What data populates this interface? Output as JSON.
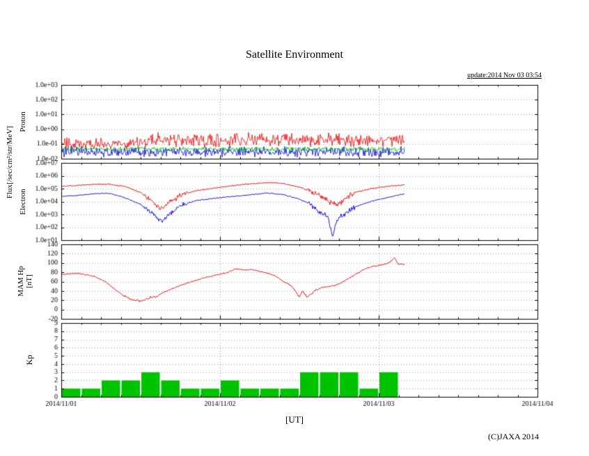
{
  "header": {
    "title": "Satellite Environment",
    "update": "update:2014 Nov 03 03:54"
  },
  "footer": {
    "ut_label": "[UT]",
    "copyright": "(C)JAXA 2014"
  },
  "axis_labels": {
    "flux": "Flux[/sec/cm²/str/MeV]",
    "proton": "Proton",
    "electron": "Electron",
    "mam_line1": "MAM Hp",
    "mam_line2": "[nT]",
    "kp": "Kp"
  },
  "colors": {
    "red": "#ee0000",
    "green": "#00c300",
    "blue": "#0000dd",
    "grid": "#a0a0a0",
    "frame": "#000000",
    "text": "#000000"
  },
  "x_axis": {
    "range_days": 3,
    "tick_labels": [
      "2014/11/01",
      "2014/11/02",
      "2014/11/03",
      "2014/11/04"
    ]
  },
  "chart_data": [
    {
      "name": "proton_flux",
      "type": "noise-band-line",
      "yscale": "log",
      "ylim": [
        0.01,
        1000
      ],
      "ytick_labels": [
        "1.0e+03",
        "1.0e+02",
        "1.0e+01",
        "1.0e+00",
        "1.0e-01",
        "1.0e-02"
      ],
      "t_end": 2.163,
      "series": [
        {
          "name": "proton-ch1",
          "color_key": "red",
          "segments": [
            {
              "t0": 0.0,
              "t1": 0.55,
              "mean_log10": -0.95,
              "spread_log10": 0.45
            },
            {
              "t0": 0.55,
              "t1": 2.163,
              "mean_log10": -0.72,
              "spread_log10": 0.55
            }
          ]
        },
        {
          "name": "proton-ch2",
          "color_key": "blue",
          "segments": [
            {
              "t0": 0.0,
              "t1": 2.163,
              "mean_log10": -1.55,
              "spread_log10": 0.42
            }
          ]
        },
        {
          "name": "proton-ch3",
          "color_key": "green",
          "segments": [
            {
              "t0": 0.0,
              "t1": 2.163,
              "mean_log10": -1.35,
              "spread_log10": 0.18
            }
          ]
        }
      ]
    },
    {
      "name": "electron_flux",
      "type": "line",
      "yscale": "log",
      "ylim": [
        10,
        10000000
      ],
      "ytick_labels": [
        "1.0e+07",
        "1.0e+06",
        "1.0e+05",
        "1.0e+04",
        "1.0e+03",
        "1.0e+02",
        "1.0e+01"
      ],
      "noise": {
        "base": 0.05,
        "zones": [
          [
            0.52,
            0.8,
            0.22
          ],
          [
            1.55,
            1.85,
            0.25
          ]
        ]
      },
      "series": [
        {
          "name": "electron-high",
          "color_key": "red",
          "points": [
            [
              0.0,
              150000
            ],
            [
              0.1,
              180000
            ],
            [
              0.2,
              220000
            ],
            [
              0.3,
              230000
            ],
            [
              0.4,
              150000
            ],
            [
              0.5,
              50000
            ],
            [
              0.58,
              8000
            ],
            [
              0.63,
              3000
            ],
            [
              0.68,
              8000
            ],
            [
              0.75,
              30000
            ],
            [
              0.85,
              70000
            ],
            [
              1.0,
              130000
            ],
            [
              1.15,
              220000
            ],
            [
              1.3,
              300000
            ],
            [
              1.4,
              250000
            ],
            [
              1.5,
              130000
            ],
            [
              1.55,
              80000
            ],
            [
              1.6,
              40000
            ],
            [
              1.65,
              20000
            ],
            [
              1.7,
              8000
            ],
            [
              1.75,
              6000
            ],
            [
              1.8,
              20000
            ],
            [
              1.85,
              50000
            ],
            [
              1.95,
              100000
            ],
            [
              2.05,
              150000
            ],
            [
              2.163,
              200000
            ]
          ]
        },
        {
          "name": "electron-low",
          "color_key": "blue",
          "points": [
            [
              0.0,
              25000
            ],
            [
              0.1,
              30000
            ],
            [
              0.2,
              40000
            ],
            [
              0.3,
              45000
            ],
            [
              0.4,
              20000
            ],
            [
              0.5,
              6000
            ],
            [
              0.58,
              1000
            ],
            [
              0.63,
              300
            ],
            [
              0.68,
              1000
            ],
            [
              0.75,
              5000
            ],
            [
              0.85,
              12000
            ],
            [
              1.0,
              20000
            ],
            [
              1.15,
              30000
            ],
            [
              1.3,
              45000
            ],
            [
              1.4,
              35000
            ],
            [
              1.5,
              15000
            ],
            [
              1.55,
              8000
            ],
            [
              1.6,
              3000
            ],
            [
              1.65,
              1000
            ],
            [
              1.68,
              800
            ],
            [
              1.7,
              40
            ],
            [
              1.71,
              12
            ],
            [
              1.72,
              60
            ],
            [
              1.74,
              400
            ],
            [
              1.78,
              1000
            ],
            [
              1.85,
              4000
            ],
            [
              1.95,
              10000
            ],
            [
              2.05,
              20000
            ],
            [
              2.163,
              40000
            ]
          ]
        }
      ]
    },
    {
      "name": "mam_hp",
      "type": "line",
      "yscale": "linear",
      "ylim": [
        -20,
        140
      ],
      "ytick_labels": [
        "140",
        "120",
        "100",
        "80",
        "60",
        "40",
        "20",
        "0",
        "-20"
      ],
      "noise": {
        "base": 1.3,
        "zones": [
          [
            0.38,
            0.62,
            3.0
          ],
          [
            1.42,
            1.62,
            3.0
          ]
        ]
      },
      "series": [
        {
          "name": "hp",
          "color_key": "red",
          "points": [
            [
              0.0,
              75
            ],
            [
              0.1,
              78
            ],
            [
              0.2,
              72
            ],
            [
              0.28,
              60
            ],
            [
              0.33,
              45
            ],
            [
              0.4,
              28
            ],
            [
              0.45,
              22
            ],
            [
              0.5,
              18
            ],
            [
              0.55,
              25
            ],
            [
              0.6,
              28
            ],
            [
              0.65,
              38
            ],
            [
              0.72,
              48
            ],
            [
              0.8,
              58
            ],
            [
              0.9,
              68
            ],
            [
              1.0,
              76
            ],
            [
              1.05,
              80
            ],
            [
              1.1,
              88
            ],
            [
              1.15,
              85
            ],
            [
              1.2,
              86
            ],
            [
              1.3,
              78
            ],
            [
              1.35,
              72
            ],
            [
              1.4,
              60
            ],
            [
              1.45,
              50
            ],
            [
              1.5,
              28
            ],
            [
              1.52,
              40
            ],
            [
              1.55,
              25
            ],
            [
              1.6,
              42
            ],
            [
              1.65,
              48
            ],
            [
              1.7,
              50
            ],
            [
              1.75,
              55
            ],
            [
              1.8,
              65
            ],
            [
              1.85,
              75
            ],
            [
              1.9,
              85
            ],
            [
              1.95,
              92
            ],
            [
              2.0,
              95
            ],
            [
              2.05,
              98
            ],
            [
              2.08,
              105
            ],
            [
              2.1,
              112
            ],
            [
              2.12,
              98
            ],
            [
              2.163,
              97
            ]
          ]
        }
      ]
    },
    {
      "name": "kp_index",
      "type": "bar",
      "yscale": "linear",
      "ylim": [
        0,
        9
      ],
      "ytick_labels": [
        "9",
        "8",
        "7",
        "6",
        "5",
        "4",
        "3",
        "2",
        "1",
        "0"
      ],
      "bar_hours": 3,
      "color_key": "green",
      "values": [
        1,
        1,
        2,
        2,
        3,
        2,
        1,
        1,
        2,
        1,
        1,
        1,
        3,
        3,
        3,
        1,
        3
      ]
    }
  ]
}
